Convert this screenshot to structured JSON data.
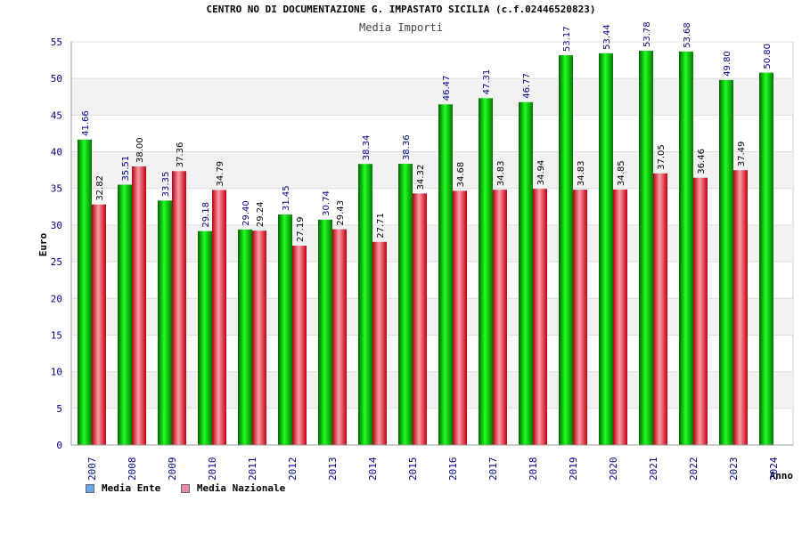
{
  "colors": {
    "ente": "#00c800",
    "nazionale": "#e8101a",
    "legend_ente": "#6aa6ea",
    "legend_nazionale": "#e58aaf",
    "axis_text": "#00008b",
    "value_text_ente": "#00008b",
    "value_text_nazionale": "#000000"
  },
  "chart_data": {
    "type": "bar",
    "title": "CENTRO NO DI DOCUMENTAZIONE G. IMPASTATO SICILIA (c.f.02446520823)",
    "subtitle": "Media Importi",
    "xlabel": "Anno",
    "ylabel": "Euro",
    "ylim": [
      0,
      55
    ],
    "yticks": [
      0,
      5,
      10,
      15,
      20,
      25,
      30,
      35,
      40,
      45,
      50,
      55
    ],
    "grid": true,
    "legend_position": "bottom-left",
    "categories": [
      "2007",
      "2008",
      "2009",
      "2010",
      "2011",
      "2012",
      "2013",
      "2014",
      "2015",
      "2016",
      "2017",
      "2018",
      "2019",
      "2020",
      "2021",
      "2022",
      "2023",
      "2024"
    ],
    "series": [
      {
        "name": "Media Ente",
        "values": [
          41.66,
          35.51,
          33.35,
          29.18,
          29.4,
          31.45,
          30.74,
          38.34,
          38.36,
          46.47,
          47.31,
          46.77,
          53.17,
          53.44,
          53.78,
          53.68,
          49.8,
          50.8
        ],
        "labels": [
          "41.66",
          "35.51",
          "33.35",
          "29.18",
          "29.40",
          "31.45",
          "30.74",
          "38.34",
          "38.36",
          "46.47",
          "47.31",
          "46.77",
          "53.17",
          "53.44",
          "53.78",
          "53.68",
          "49.80",
          "50.80"
        ]
      },
      {
        "name": "Media Nazionale",
        "values": [
          32.82,
          38.0,
          37.36,
          34.79,
          29.24,
          27.19,
          29.43,
          27.71,
          34.32,
          34.68,
          34.83,
          34.94,
          34.83,
          34.85,
          37.05,
          36.46,
          37.49,
          null
        ],
        "labels": [
          "32.82",
          "38.00",
          "37.36",
          "34.79",
          "29.24",
          "27.19",
          "29.43",
          "27.71",
          "34.32",
          "34.68",
          "34.83",
          "34.94",
          "34.83",
          "34.85",
          "37.05",
          "36.46",
          "37.49",
          null
        ]
      }
    ]
  }
}
